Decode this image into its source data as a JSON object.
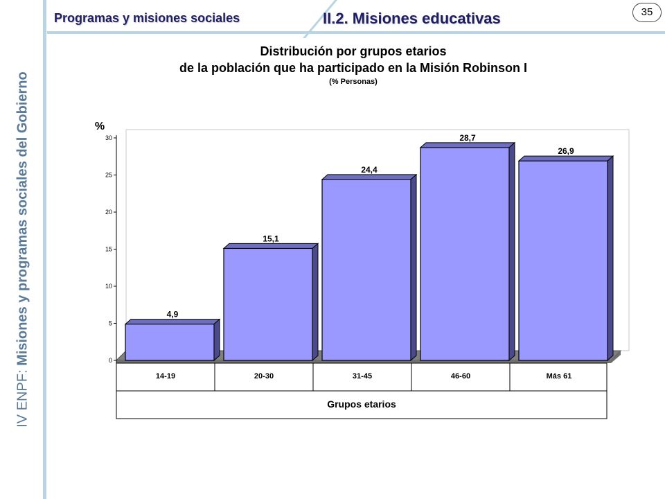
{
  "side_title": {
    "prefix": "IV ENPF:",
    "text": "Misiones y programas sociales del Gobierno"
  },
  "header": {
    "section": "Programas y misiones sociales",
    "title": "II.2. Misiones educativas",
    "page_number": "35"
  },
  "chart_data": {
    "type": "bar",
    "title_lines": [
      "Distribución por grupos etarios",
      "de la población que ha participado en la Misión Robinson I"
    ],
    "subtitle": "(% Personas)",
    "ylabel": "%",
    "xlabel": "Grupos etarios",
    "categories": [
      "14-19",
      "20-30",
      "31-45",
      "46-60",
      "Más 61"
    ],
    "values": [
      4.9,
      15.1,
      24.4,
      28.7,
      26.9
    ],
    "value_labels": [
      "4,9",
      "15,1",
      "24,4",
      "28,7",
      "26,9"
    ],
    "ylim": [
      0,
      30
    ],
    "yticks": [
      0,
      5,
      10,
      15,
      20,
      25,
      30
    ],
    "grid": false,
    "bar_color": "#9999ff",
    "bar_side_color": "#4a4a8c",
    "bar_top_color": "#6e6ebe"
  }
}
